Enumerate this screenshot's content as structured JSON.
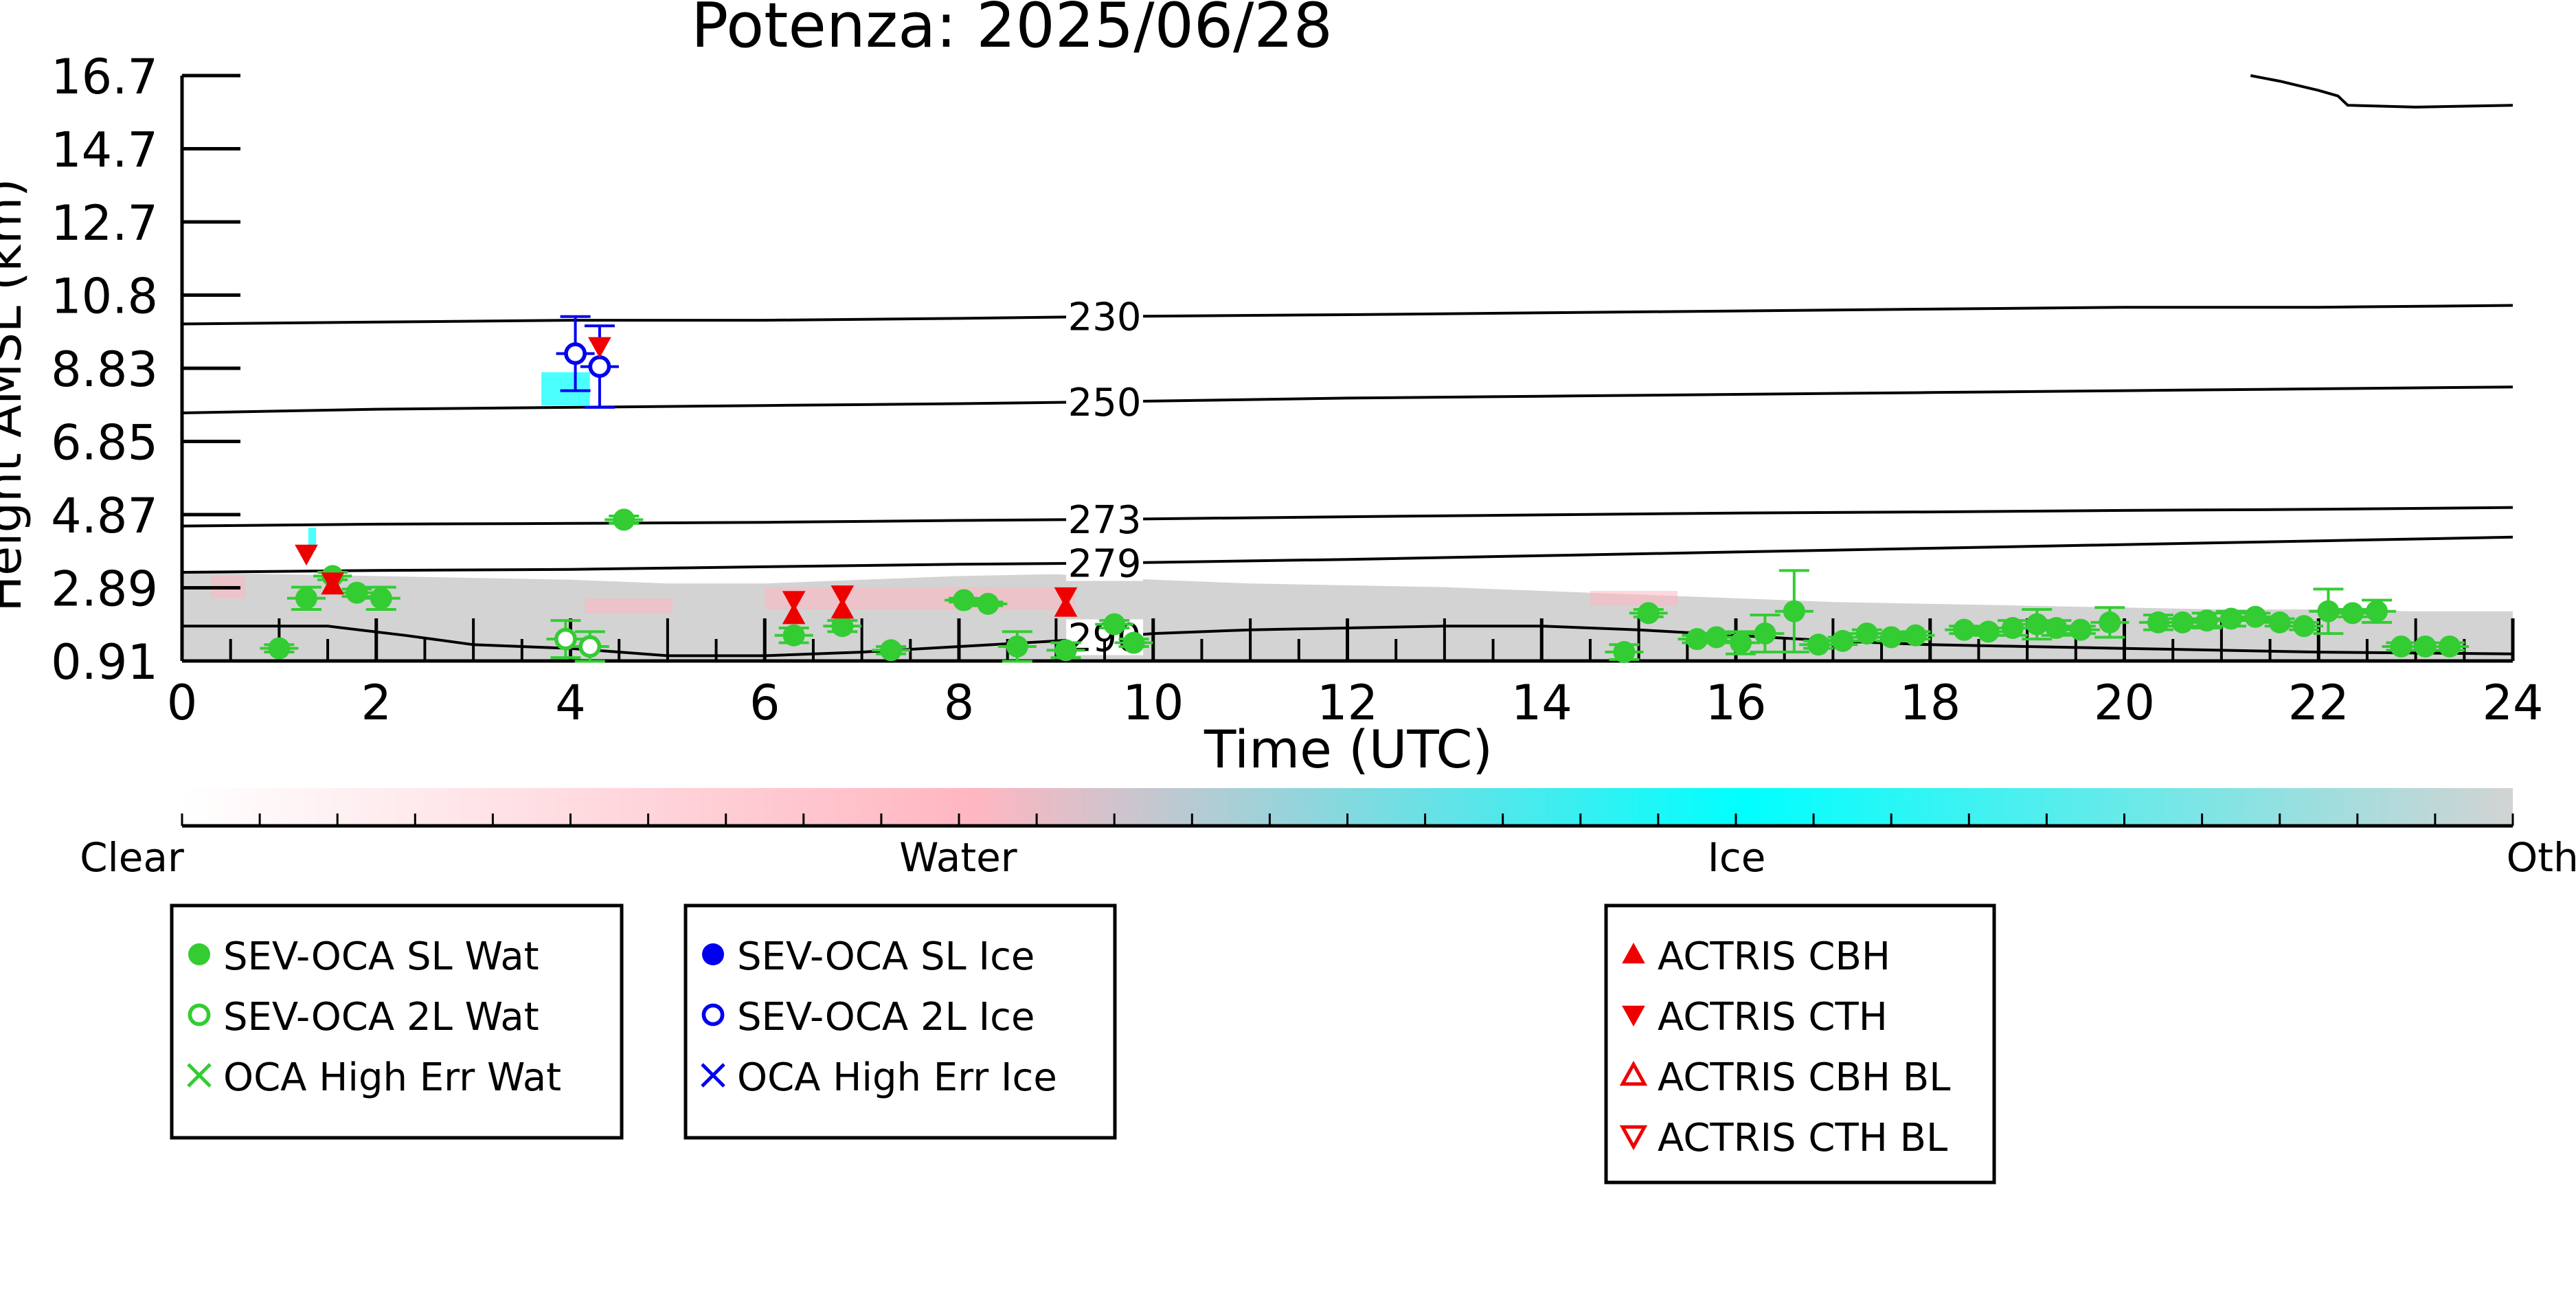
{
  "chart_data": {
    "type": "scatter",
    "title": "Potenza: 2025/06/28",
    "xlabel": "Time (UTC)",
    "ylabel": "Height AMSL (km)",
    "xlim": [
      0,
      24
    ],
    "ylim": [
      0.91,
      16.7
    ],
    "xticks": [
      "0",
      "2",
      "4",
      "6",
      "8",
      "10",
      "12",
      "14",
      "16",
      "18",
      "20",
      "22",
      "24"
    ],
    "yticks": [
      "0.91",
      "2.89",
      "4.87",
      "6.85",
      "8.83",
      "10.8",
      "12.7",
      "14.7",
      "16.7"
    ],
    "grid": false,
    "colorbar": {
      "labels": [
        "Clear",
        "Water",
        "Ice",
        "Other"
      ],
      "colors": [
        "#ffffff",
        "#ffb6c1",
        "#00ffff",
        "#d3d3d3"
      ]
    },
    "contours": [
      {
        "label": "230",
        "x": [
          0,
          2,
          4,
          6,
          8,
          9.5,
          12,
          14,
          16,
          18,
          20,
          22,
          24
        ],
        "y": [
          10.0,
          10.05,
          10.1,
          10.1,
          10.15,
          10.2,
          10.25,
          10.3,
          10.35,
          10.4,
          10.45,
          10.45,
          10.5
        ]
      },
      {
        "label": "250",
        "x": [
          0,
          2,
          4,
          6,
          8,
          9.5,
          12,
          14,
          16,
          18,
          20,
          22,
          24
        ],
        "y": [
          7.6,
          7.7,
          7.75,
          7.8,
          7.85,
          7.9,
          8.0,
          8.05,
          8.1,
          8.15,
          8.2,
          8.25,
          8.3
        ]
      },
      {
        "label": "273",
        "x": [
          0,
          2,
          4,
          6,
          8,
          9.5,
          12,
          14,
          16,
          18,
          20,
          22,
          24
        ],
        "y": [
          4.55,
          4.6,
          4.62,
          4.65,
          4.7,
          4.73,
          4.8,
          4.85,
          4.9,
          4.93,
          4.97,
          5.0,
          5.05
        ]
      },
      {
        "label": "279",
        "x": [
          0,
          2,
          4,
          6,
          8,
          9.5,
          12,
          14,
          16,
          18,
          20,
          22,
          24
        ],
        "y": [
          3.3,
          3.35,
          3.38,
          3.45,
          3.52,
          3.55,
          3.65,
          3.75,
          3.85,
          3.95,
          4.05,
          4.15,
          4.25
        ]
      },
      {
        "label": "290",
        "x": [
          0,
          1.5,
          2.3,
          3,
          4,
          5,
          6,
          7,
          8,
          9,
          10,
          11,
          12,
          13,
          14,
          15,
          16,
          17,
          18,
          19,
          20,
          22,
          24
        ],
        "y": [
          1.85,
          1.85,
          1.6,
          1.35,
          1.25,
          1.05,
          1.05,
          1.15,
          1.3,
          1.45,
          1.65,
          1.75,
          1.8,
          1.85,
          1.85,
          1.75,
          1.6,
          1.45,
          1.35,
          1.3,
          1.25,
          1.15,
          1.1
        ]
      },
      {
        "label": "",
        "x": [
          21.3,
          21.6,
          22.0,
          22.2,
          22.3,
          23,
          24
        ],
        "y": [
          16.7,
          16.55,
          16.3,
          16.15,
          15.9,
          15.85,
          15.9
        ]
      }
    ],
    "series": [
      {
        "name": "SEV-OCA SL Wat",
        "marker": "filled-circle",
        "color": "#33cc33",
        "x": [
          1.0,
          1.28,
          1.55,
          1.8,
          2.05,
          4.55,
          6.3,
          6.8,
          7.3,
          8.05,
          8.3,
          8.6,
          9.1,
          9.6,
          9.8,
          14.85,
          15.1,
          15.6,
          15.8,
          16.05,
          16.3,
          16.6,
          16.85,
          17.1,
          17.35,
          17.6,
          17.85,
          18.35,
          18.6,
          18.85,
          19.1,
          19.3,
          19.55,
          19.85,
          20.35,
          20.6,
          20.85,
          21.1,
          21.35,
          21.6,
          21.85,
          22.1,
          22.35,
          22.6,
          22.85,
          23.1,
          23.35
        ],
        "y": [
          1.25,
          2.6,
          3.2,
          2.75,
          2.6,
          4.72,
          1.6,
          1.85,
          1.2,
          2.55,
          2.45,
          1.3,
          1.2,
          1.9,
          1.4,
          1.15,
          2.2,
          1.5,
          1.55,
          1.4,
          1.65,
          2.25,
          1.35,
          1.45,
          1.65,
          1.55,
          1.6,
          1.75,
          1.7,
          1.8,
          1.9,
          1.8,
          1.75,
          1.95,
          1.95,
          1.95,
          2.0,
          2.05,
          2.1,
          1.95,
          1.85,
          2.25,
          2.2,
          2.25,
          1.3,
          1.3,
          1.3
        ],
        "err": [
          0.1,
          0.3,
          0.1,
          0.1,
          0.3,
          0.1,
          0.2,
          0.15,
          0.1,
          0.05,
          0.05,
          0.4,
          0.2,
          0.1,
          0.1,
          0.2,
          0.1,
          0.1,
          0.1,
          0.3,
          0.5,
          1.1,
          0.1,
          0.1,
          0.1,
          0.1,
          0.1,
          0.1,
          0.1,
          0.2,
          0.4,
          0.2,
          0.1,
          0.4,
          0.2,
          0.1,
          0.2,
          0.2,
          0.1,
          0.1,
          0.1,
          0.6,
          0.1,
          0.3,
          0.1,
          0.1,
          0.1
        ]
      },
      {
        "name": "SEV-OCA 2L Wat",
        "marker": "open-circle",
        "color": "#33cc33",
        "x": [
          3.95,
          4.2
        ],
        "y": [
          1.5,
          1.3
        ],
        "err": [
          0.5,
          0.4
        ]
      },
      {
        "name": "OCA High Err Wat",
        "marker": "x",
        "color": "#33cc33",
        "x": [],
        "y": []
      },
      {
        "name": "SEV-OCA SL Ice",
        "marker": "filled-circle",
        "color": "#0000ee",
        "x": [],
        "y": []
      },
      {
        "name": "SEV-OCA 2L Ice",
        "marker": "open-circle",
        "color": "#0000ee",
        "x": [
          4.05,
          4.3
        ],
        "y": [
          9.2,
          8.85
        ],
        "err": [
          1.0,
          1.1
        ]
      },
      {
        "name": "OCA High Err Ice",
        "marker": "x",
        "color": "#0000ee",
        "x": [],
        "y": []
      },
      {
        "name": "ACTRIS CBH",
        "marker": "triangle-up",
        "color": "#ee0000",
        "x": [
          1.55,
          6.3,
          6.8,
          9.1
        ],
        "y": [
          2.95,
          2.15,
          2.3,
          2.35
        ]
      },
      {
        "name": "ACTRIS CTH",
        "marker": "triangle-down",
        "color": "#ee0000",
        "x": [
          1.28,
          1.55,
          4.3,
          6.3,
          6.8,
          9.1
        ],
        "y": [
          3.8,
          3.05,
          9.4,
          2.55,
          2.7,
          2.65
        ]
      },
      {
        "name": "ACTRIS CBH BL",
        "marker": "triangle-up-open",
        "color": "#ee0000",
        "x": [],
        "y": []
      },
      {
        "name": "ACTRIS CTH BL",
        "marker": "triangle-down-open",
        "color": "#ee0000",
        "x": [],
        "y": []
      }
    ],
    "legends": [
      [
        "SEV-OCA SL Wat",
        "SEV-OCA 2L Wat",
        "OCA High Err Wat"
      ],
      [
        "SEV-OCA SL Ice",
        "SEV-OCA 2L Ice",
        "OCA High Err Ice"
      ],
      [
        "ACTRIS CBH",
        "ACTRIS CTH",
        "ACTRIS CBH BL",
        "ACTRIS CTH BL"
      ]
    ]
  }
}
